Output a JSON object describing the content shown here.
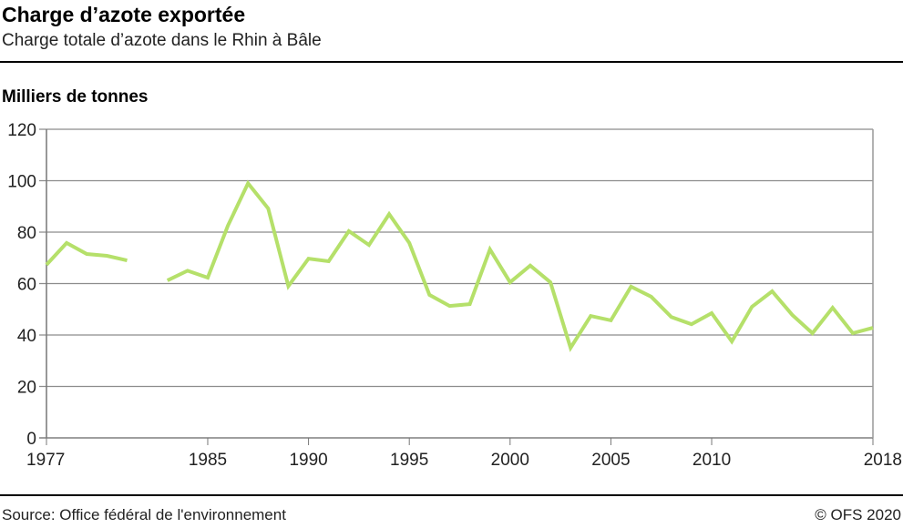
{
  "header": {
    "title": "Charge d’azote exportée",
    "subtitle": "Charge totale d’azote dans le Rhin à Bâle"
  },
  "footer": {
    "source": "Source: Office fédéral de l'environnement",
    "copyright": "© OFS 2020"
  },
  "colors": {
    "line": "#b5e06a",
    "grid": "#8c8c8c"
  },
  "chart_data": {
    "type": "line",
    "title": "Charge d’azote exportée",
    "subtitle": "Charge totale d’azote dans le Rhin à Bâle",
    "ylabel": "Milliers de tonnes",
    "xlabel": "",
    "ylim": [
      0,
      120
    ],
    "xlim": [
      1977,
      2018
    ],
    "yticks": [
      0,
      20,
      40,
      60,
      80,
      100,
      120
    ],
    "xticks": [
      1977,
      1985,
      1990,
      1995,
      2000,
      2005,
      2010,
      2018
    ],
    "grid": true,
    "x": [
      1977,
      1978,
      1979,
      1980,
      1981,
      1982,
      1983,
      1984,
      1985,
      1986,
      1987,
      1988,
      1989,
      1990,
      1991,
      1992,
      1993,
      1994,
      1995,
      1996,
      1997,
      1998,
      1999,
      2000,
      2001,
      2002,
      2003,
      2004,
      2005,
      2006,
      2007,
      2008,
      2009,
      2010,
      2011,
      2012,
      2013,
      2014,
      2015,
      2016,
      2017,
      2018
    ],
    "series": [
      {
        "name": "Charge d’azote",
        "values": [
          67.3,
          75.8,
          71.5,
          70.8,
          69,
          null,
          61.2,
          65,
          62.3,
          82.5,
          99,
          89.2,
          59,
          69.7,
          68.7,
          80.4,
          75,
          87,
          75.8,
          55.6,
          51.3,
          52,
          73.3,
          60.5,
          67,
          60.5,
          35,
          47.4,
          45.7,
          58.8,
          54.9,
          47,
          44.2,
          48.5,
          37.5,
          51,
          57,
          47.8,
          40.7,
          50.6,
          40.7,
          42.8
        ]
      }
    ]
  }
}
